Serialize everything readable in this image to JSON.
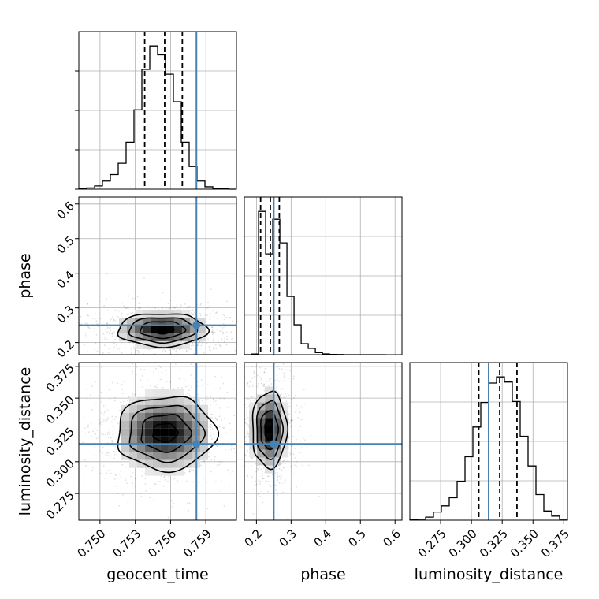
{
  "chart_data": {
    "type": "corner",
    "parameters": [
      "geocent_time",
      "phase",
      "luminosity_distance"
    ],
    "truth": {
      "geocent_time": 0.7582,
      "phase": 0.25,
      "luminosity_distance": 0.314
    },
    "truth_color": "#4682b4",
    "grid": true,
    "histograms": {
      "geocent_time": {
        "range": [
          0.7482,
          0.7616
        ],
        "bins": [
          0.7482,
          0.74887,
          0.74954,
          0.75021,
          0.75088,
          0.75155,
          0.75222,
          0.75289,
          0.75356,
          0.75423,
          0.7549,
          0.75557,
          0.75624,
          0.75691,
          0.75758,
          0.75825,
          0.75892,
          0.75959,
          0.76026,
          0.76093,
          0.7616
        ],
        "counts": [
          0.5,
          1.5,
          4,
          10,
          18,
          32,
          58,
          98,
          148,
          177,
          166,
          142,
          108,
          58,
          28,
          10,
          3,
          1,
          0.3,
          0
        ],
        "quantiles": [
          0.7538,
          0.7555,
          0.757
        ]
      },
      "phase": {
        "range": [
          0.165,
          0.62
        ],
        "bins": [
          0.165,
          0.1855,
          0.206,
          0.2265,
          0.247,
          0.2675,
          0.288,
          0.3085,
          0.329,
          0.3495,
          0.37,
          0.3905,
          0.411,
          0.4315,
          0.452,
          0.4725,
          0.493,
          0.5135,
          0.534,
          0.5545,
          0.575
        ],
        "counts": [
          0,
          0.4,
          91,
          64,
          86,
          71,
          37,
          19,
          7,
          4,
          1.3,
          0.5,
          0.2,
          0.1,
          0,
          0,
          0,
          0,
          0,
          0
        ],
        "quantiles": [
          0.212,
          0.24,
          0.266
        ]
      },
      "luminosity_distance": {
        "range": [
          0.25,
          0.378
        ],
        "bins": [
          0.25,
          0.2564,
          0.2628,
          0.2692,
          0.2756,
          0.282,
          0.2884,
          0.2948,
          0.3012,
          0.3076,
          0.314,
          0.3204,
          0.3268,
          0.3332,
          0.3396,
          0.346,
          0.3524,
          0.3588,
          0.3652,
          0.3716,
          0.378
        ],
        "counts": [
          0.5,
          1,
          3,
          8,
          14,
          22,
          38,
          62,
          91,
          115,
          134,
          140,
          135,
          116,
          82,
          53,
          25,
          9,
          4,
          1
        ],
        "quantiles": [
          0.306,
          0.323,
          0.337
        ]
      }
    },
    "pairs": [
      {
        "x": "geocent_time",
        "y": "phase",
        "center": [
          0.7553,
          0.238
        ],
        "spread": [
          0.0019,
          0.024
        ],
        "xlim": [
          0.7482,
          0.7616
        ],
        "ylim": [
          0.165,
          0.62
        ]
      },
      {
        "x": "geocent_time",
        "y": "luminosity_distance",
        "center": [
          0.7555,
          0.323
        ],
        "spread": [
          0.0021,
          0.0145
        ],
        "xlim": [
          0.7482,
          0.7616
        ],
        "ylim": [
          0.254,
          0.378
        ]
      },
      {
        "x": "phase",
        "y": "luminosity_distance",
        "center": [
          0.236,
          0.325
        ],
        "spread": [
          0.025,
          0.015
        ],
        "xlim": [
          0.165,
          0.62
        ],
        "ylim": [
          0.254,
          0.378
        ]
      }
    ],
    "ticks": {
      "geocent_time": {
        "values": [
          0.75,
          0.753,
          0.756,
          0.759
        ],
        "labels": [
          "0.750",
          "0.753",
          "0.756",
          "0.759"
        ]
      },
      "phase": {
        "values": [
          0.2,
          0.3,
          0.4,
          0.5,
          0.6
        ],
        "labels": [
          "0.2",
          "0.3",
          "0.4",
          "0.5",
          "0.6"
        ]
      },
      "luminosity_distance": {
        "values": [
          0.275,
          0.3,
          0.325,
          0.35,
          0.375
        ],
        "labels": [
          "0.275",
          "0.300",
          "0.325",
          "0.350",
          "0.375"
        ]
      }
    },
    "axis_labels": {
      "x": [
        "geocent_time",
        "phase",
        "luminosity_distance"
      ],
      "y": [
        "phase",
        "luminosity_distance"
      ]
    }
  }
}
